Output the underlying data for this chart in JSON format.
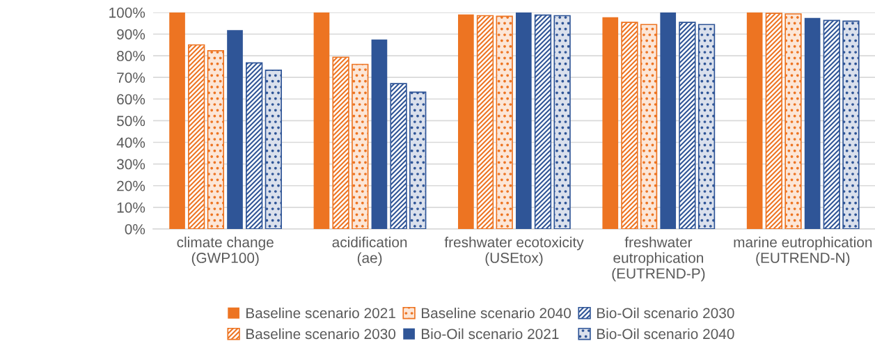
{
  "chart_data": {
    "type": "bar",
    "categories": [
      "climate change\n(GWP100)",
      "acidification\n(ae)",
      "freshwater ecotoxicity\n(USEtox)",
      "freshwater\neutrophication\n(EUTREND-P)",
      "marine eutrophication\n(EUTREND-N)"
    ],
    "series": [
      {
        "name": "Baseline scenario 2021",
        "color": "#ed7422",
        "values": [
          100,
          100,
          99.1,
          97.8,
          100
        ]
      },
      {
        "name": "Baseline scenario 2030",
        "color": "#ed7422",
        "values": [
          85,
          79.3,
          98.5,
          95.4,
          99.6
        ]
      },
      {
        "name": "Baseline scenario 2040",
        "color": "#ed7422",
        "values": [
          82.3,
          76,
          98.2,
          94.4,
          99.3
        ]
      },
      {
        "name": "Bio-Oil scenario 2021",
        "color": "#2f5597",
        "values": [
          91.8,
          87.5,
          100,
          100,
          97.5
        ]
      },
      {
        "name": "Bio-Oil scenario 2030",
        "color": "#2f5597",
        "values": [
          76.7,
          67.1,
          98.8,
          95.4,
          96.3
        ]
      },
      {
        "name": "Bio-Oil scenario 2040",
        "color": "#2f5597",
        "values": [
          73.3,
          63.2,
          98.5,
          94.4,
          96
        ]
      }
    ],
    "ylim": [
      0,
      100
    ],
    "yticks": [
      {
        "value": 0,
        "label": "0%"
      },
      {
        "value": 10,
        "label": "10%"
      },
      {
        "value": 20,
        "label": "20%"
      },
      {
        "value": 30,
        "label": "30%"
      },
      {
        "value": 40,
        "label": "40%"
      },
      {
        "value": 50,
        "label": "50%"
      },
      {
        "value": 60,
        "label": "60%"
      },
      {
        "value": 70,
        "label": "70%"
      },
      {
        "value": 80,
        "label": "80%"
      },
      {
        "value": 90,
        "label": "90%"
      },
      {
        "value": 100,
        "label": "100%"
      }
    ],
    "grid": "y",
    "legend": "bottom"
  }
}
